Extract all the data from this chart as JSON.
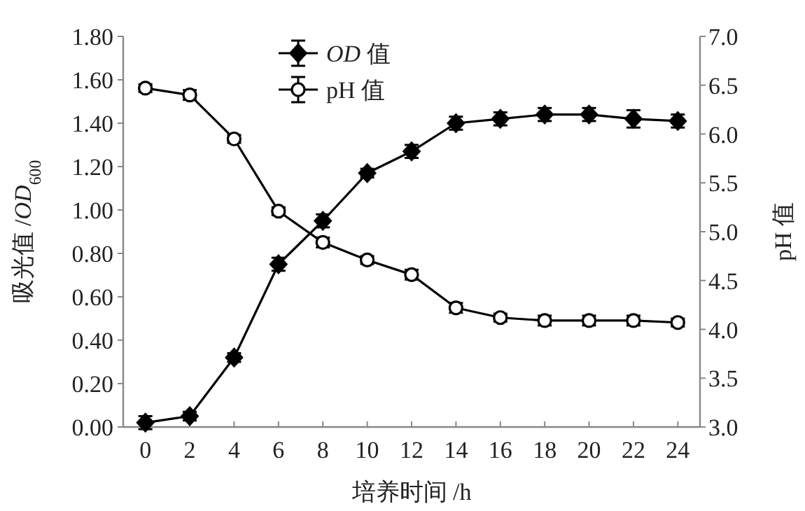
{
  "chart_data": {
    "type": "line",
    "xlabel": "培养时间 /h",
    "ylabel": "吸光值 /*OD*$_{600}$",
    "y2label": "pH 值",
    "x": [
      0,
      2,
      4,
      6,
      8,
      10,
      12,
      14,
      16,
      18,
      20,
      22,
      24
    ],
    "series": [
      {
        "name": "*OD* 值",
        "color": "#000000",
        "marker": "diamond",
        "values": [
          0.02,
          0.05,
          0.32,
          0.75,
          0.95,
          1.17,
          1.27,
          1.4,
          1.42,
          1.44,
          1.44,
          1.42,
          1.41
        ],
        "errors": [
          0.03,
          0.02,
          0.02,
          0.03,
          0.03,
          0.02,
          0.03,
          0.03,
          0.03,
          0.03,
          0.03,
          0.04,
          0.03
        ]
      },
      {
        "name": "pH 值",
        "color": "#000000",
        "marker": "circle",
        "axis": "y2",
        "values": [
          6.47,
          6.4,
          5.95,
          5.21,
          4.89,
          4.71,
          4.56,
          4.22,
          4.12,
          4.09,
          4.09,
          4.09,
          4.07
        ],
        "errors": [
          0.04,
          0.05,
          0.04,
          0.04,
          0.05,
          0.04,
          0.05,
          0.05,
          0.04,
          0.05,
          0.05,
          0.05,
          0.04
        ]
      }
    ],
    "xlim": [
      -1,
      25
    ],
    "xticks": [
      0,
      2,
      4,
      6,
      8,
      10,
      12,
      14,
      16,
      18,
      20,
      22,
      24
    ],
    "ylim": [
      0,
      1.8
    ],
    "yticks": [
      {
        "value": 0,
        "label": "0.00"
      },
      {
        "value": 0.2,
        "label": "0.20"
      },
      {
        "value": 0.4,
        "label": "0.40"
      },
      {
        "value": 0.6,
        "label": "0.60"
      },
      {
        "value": 0.8,
        "label": "0.80"
      },
      {
        "value": 1,
        "label": "1.00"
      },
      {
        "value": 1.2,
        "label": "1.20"
      },
      {
        "value": 1.4,
        "label": "1.40"
      },
      {
        "value": 1.6,
        "label": "1.60"
      },
      {
        "value": 1.8,
        "label": "1.80"
      }
    ],
    "y2lim": [
      3,
      7
    ],
    "y2ticks": [
      {
        "value": 3,
        "label": "3.0"
      },
      {
        "value": 3.5,
        "label": "3.5"
      },
      {
        "value": 4,
        "label": "4.0"
      },
      {
        "value": 4.5,
        "label": "4.5"
      },
      {
        "value": 5,
        "label": "5.0"
      },
      {
        "value": 5.5,
        "label": "5.5"
      },
      {
        "value": 6,
        "label": "6.0"
      },
      {
        "value": 6.5,
        "label": "6.5"
      },
      {
        "value": 7,
        "label": "7.0"
      }
    ],
    "legend": "top left",
    "grid": false,
    "line_style": "solid"
  }
}
